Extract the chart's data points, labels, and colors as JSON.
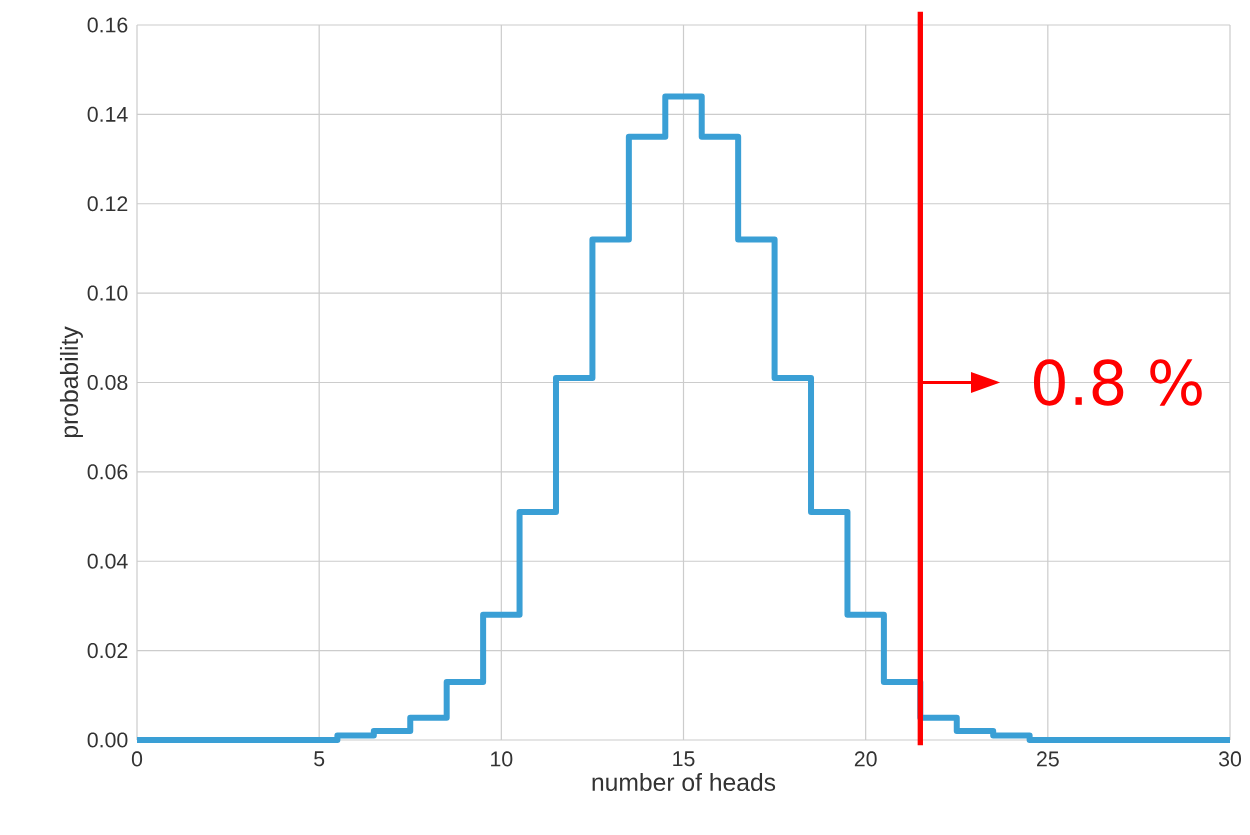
{
  "chart_data": {
    "type": "step",
    "xlabel": "number of heads",
    "ylabel": "probability",
    "x": [
      0,
      1,
      2,
      3,
      4,
      5,
      6,
      7,
      8,
      9,
      10,
      11,
      12,
      13,
      14,
      15,
      16,
      17,
      18,
      19,
      20,
      21,
      22,
      23,
      24,
      25,
      26,
      27,
      28,
      29,
      30
    ],
    "series": [
      {
        "color": "#3a9fd5",
        "values": [
          0,
          0,
          0,
          0,
          0,
          0.0,
          0.001,
          0.002,
          0.005,
          0.013,
          0.028,
          0.051,
          0.081,
          0.112,
          0.135,
          0.144,
          0.135,
          0.112,
          0.081,
          0.051,
          0.028,
          0.013,
          0.005,
          0.002,
          0.001,
          0.0,
          0,
          0,
          0,
          0,
          0
        ]
      }
    ],
    "xlim": [
      0,
      30
    ],
    "ylim": [
      0,
      0.16
    ],
    "xticks": [
      0,
      5,
      10,
      15,
      20,
      25,
      30
    ],
    "yticks": [
      {
        "value": 0,
        "label": "0.00"
      },
      {
        "value": 0.02,
        "label": "0.02"
      },
      {
        "value": 0.04,
        "label": "0.04"
      },
      {
        "value": 0.06,
        "label": "0.06"
      },
      {
        "value": 0.08,
        "label": "0.08"
      },
      {
        "value": 0.1,
        "label": "0.10"
      },
      {
        "value": 0.12,
        "label": "0.12"
      },
      {
        "value": 0.14,
        "label": "0.14"
      },
      {
        "value": 0.16,
        "label": "0.16"
      }
    ],
    "grid": true,
    "line_style": "solid",
    "ref_lines": [
      {
        "axis": "x",
        "value": 21.5,
        "color": "#ff0000"
      }
    ],
    "annotations": [
      {
        "text": "0.8 %",
        "x": 21.5,
        "y": 0.08
      }
    ]
  }
}
